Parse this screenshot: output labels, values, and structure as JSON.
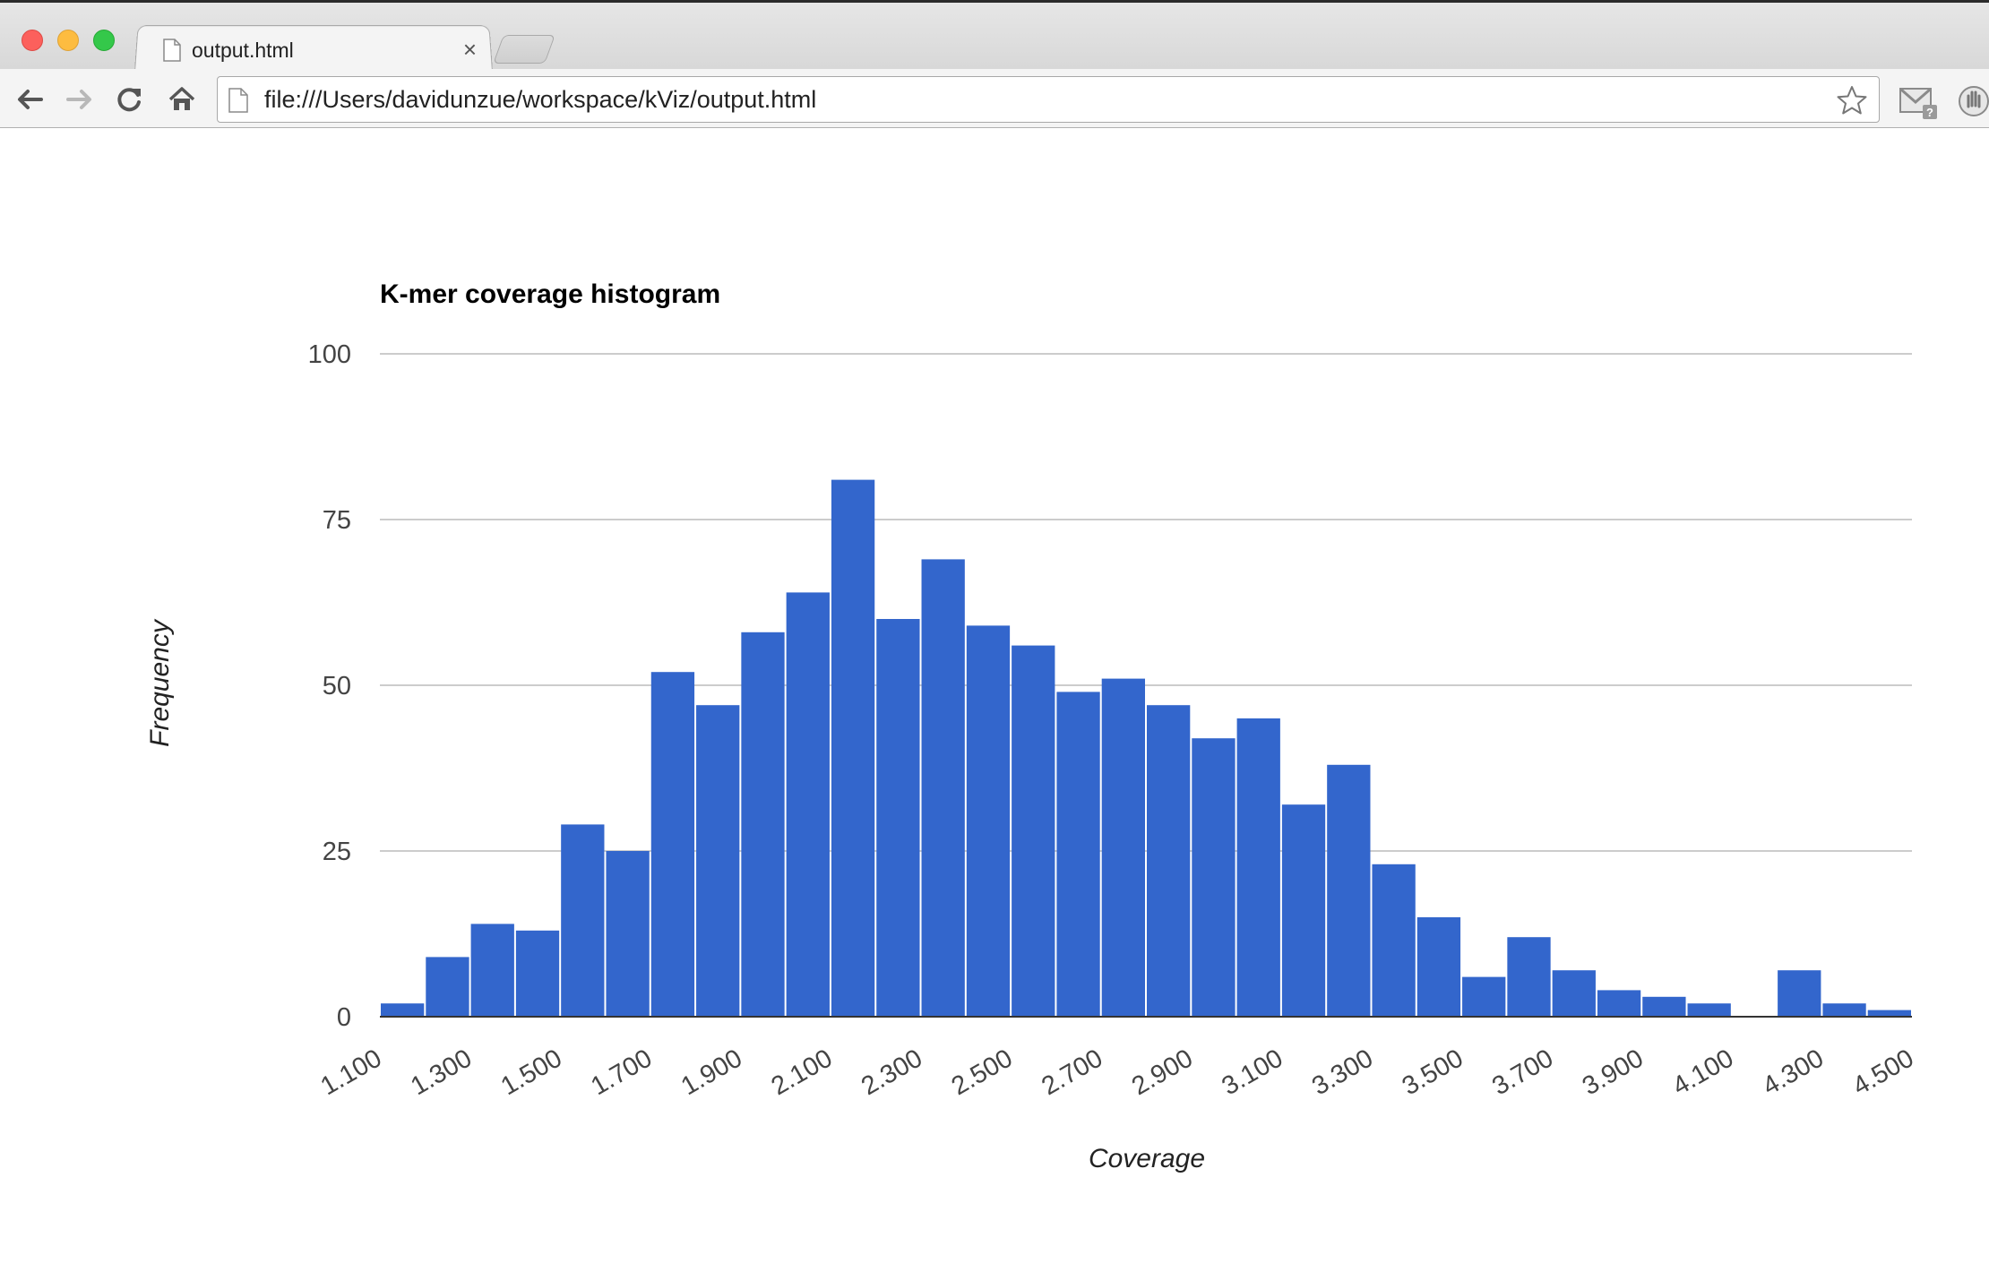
{
  "browser": {
    "tab": {
      "title": "output.html",
      "close_glyph": "×"
    },
    "address_bar": {
      "url": "file:///Users/davidunzue/workspace/kViz/output.html"
    },
    "icons": [
      "back-arrow-icon",
      "forward-arrow-icon",
      "reload-icon",
      "home-icon",
      "page-icon",
      "bookmark-star-icon",
      "gmail-checker-icon",
      "hand-extension-icon"
    ]
  },
  "chart_data": {
    "type": "bar",
    "title": "K-mer coverage histogram",
    "xlabel": "Coverage",
    "ylabel": "Frequency",
    "ylim": [
      0,
      100
    ],
    "xlim": [
      1.1,
      4.5
    ],
    "bin_width": 0.1,
    "y_ticks": [
      "0",
      "25",
      "50",
      "75",
      "100"
    ],
    "x_ticks": [
      "1.100",
      "1.300",
      "1.500",
      "1.700",
      "1.900",
      "2.100",
      "2.300",
      "2.500",
      "2.700",
      "2.900",
      "3.100",
      "3.300",
      "3.500",
      "3.700",
      "3.900",
      "4.100",
      "4.300",
      "4.500"
    ],
    "bin_starts": [
      1.1,
      1.2,
      1.3,
      1.4,
      1.5,
      1.6,
      1.7,
      1.8,
      1.9,
      2.0,
      2.1,
      2.2,
      2.3,
      2.4,
      2.5,
      2.6,
      2.7,
      2.8,
      2.9,
      3.0,
      3.1,
      3.2,
      3.3,
      3.4,
      3.5,
      3.6,
      3.7,
      3.8,
      3.9,
      4.0,
      4.1,
      4.2,
      4.3,
      4.4
    ],
    "values": [
      2,
      9,
      14,
      13,
      29,
      25,
      52,
      47,
      58,
      64,
      81,
      60,
      69,
      59,
      56,
      49,
      51,
      47,
      42,
      45,
      32,
      38,
      23,
      15,
      6,
      12,
      7,
      4,
      3,
      2,
      0,
      7,
      2,
      1
    ],
    "bar_color": "#3366cc",
    "gridlines": true,
    "legend": "none"
  }
}
